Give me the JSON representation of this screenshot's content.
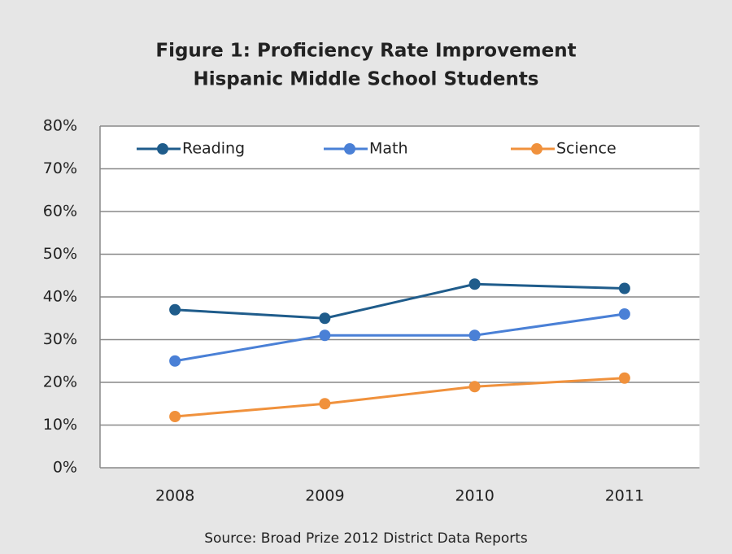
{
  "chart_data": {
    "type": "line",
    "title": [
      "Figure 1: Proficiency Rate Improvement",
      "Hispanic Middle School Students"
    ],
    "source": "Source: Broad Prize 2012 District Data Reports",
    "categories": [
      "2008",
      "2009",
      "2010",
      "2011"
    ],
    "series": [
      {
        "name": "Reading",
        "color": "#1f5c8b",
        "values": [
          37,
          35,
          43,
          42
        ]
      },
      {
        "name": "Math",
        "color": "#4a80d6",
        "values": [
          25,
          31,
          31,
          36
        ]
      },
      {
        "name": "Science",
        "color": "#f0913c",
        "values": [
          12,
          15,
          19,
          21
        ]
      }
    ],
    "ylim": [
      0,
      80
    ],
    "yticks": [
      {
        "value": 0,
        "label": "0%"
      },
      {
        "value": 10,
        "label": "10%"
      },
      {
        "value": 20,
        "label": "20%"
      },
      {
        "value": 30,
        "label": "30%"
      },
      {
        "value": 40,
        "label": "40%"
      },
      {
        "value": 50,
        "label": "50%"
      },
      {
        "value": 60,
        "label": "60%"
      },
      {
        "value": 70,
        "label": "70%"
      },
      {
        "value": 80,
        "label": "80%"
      }
    ],
    "grid": true,
    "legend": "top"
  }
}
